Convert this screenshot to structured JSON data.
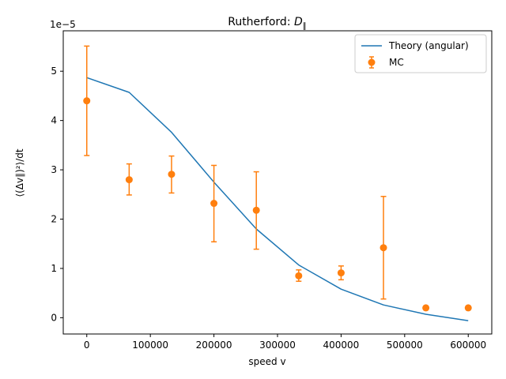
{
  "chart_data": {
    "type": "line",
    "title": "Rutherford: ",
    "title_symbol": "D",
    "title_subscript": "∥",
    "xlabel": "speed v",
    "ylabel": "⟨(Δv∥)²⟩/dt",
    "y_multiplier": "1e−5",
    "xlim": [
      -37000,
      637000
    ],
    "ylim": [
      -0.33,
      5.82
    ],
    "x_ticks": [
      0,
      100000,
      200000,
      300000,
      400000,
      500000,
      600000
    ],
    "x_tick_labels": [
      "0",
      "100000",
      "200000",
      "300000",
      "400000",
      "500000",
      "600000"
    ],
    "y_ticks": [
      0,
      1,
      2,
      3,
      4,
      5
    ],
    "y_tick_labels": [
      "0",
      "1",
      "2",
      "3",
      "4",
      "5"
    ],
    "grid": false,
    "legend_position": "top-right",
    "series": [
      {
        "name": "Theory (angular)",
        "kind": "line",
        "color": "#1f77b4",
        "x": [
          0,
          66667,
          133333,
          200000,
          266667,
          333333,
          400000,
          466667,
          533333,
          600000
        ],
        "y": [
          4.87,
          4.57,
          3.76,
          2.75,
          1.8,
          1.07,
          0.58,
          0.26,
          0.07,
          -0.06
        ]
      },
      {
        "name": "MC",
        "kind": "errorbar",
        "color": "#ff7f0e",
        "x": [
          0,
          66667,
          133333,
          200000,
          266667,
          333333,
          400000,
          466667,
          533333,
          600000
        ],
        "y": [
          4.4,
          2.8,
          2.91,
          2.32,
          2.18,
          0.85,
          0.91,
          1.42,
          0.2,
          0.2
        ],
        "err_low": [
          3.29,
          2.49,
          2.53,
          1.54,
          1.39,
          0.74,
          0.77,
          0.38,
          0.2,
          0.2
        ],
        "err_high": [
          5.51,
          3.12,
          3.28,
          3.09,
          2.96,
          0.97,
          1.05,
          2.46,
          0.2,
          0.2
        ]
      }
    ]
  }
}
